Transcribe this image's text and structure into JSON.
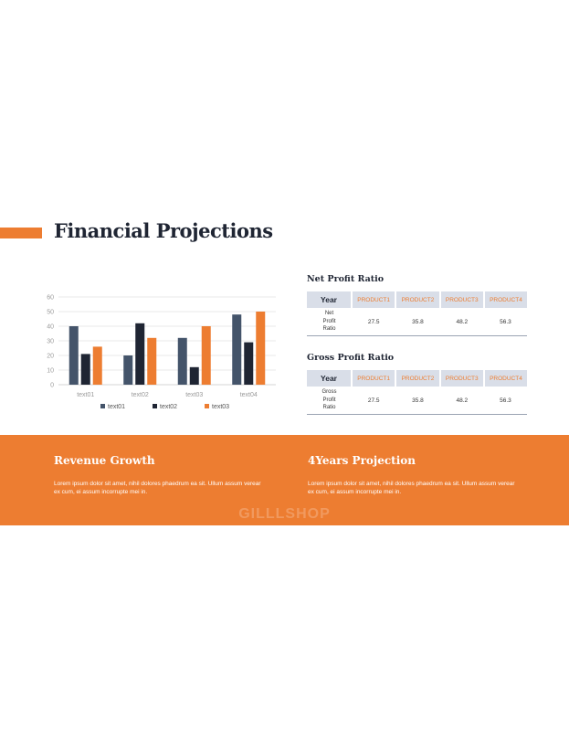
{
  "slide": {
    "title": "Financial Projections"
  },
  "chart_data": {
    "type": "bar",
    "categories": [
      "text01",
      "text02",
      "text03",
      "text04"
    ],
    "series": [
      {
        "name": "text01",
        "values": [
          40,
          20,
          32,
          48
        ],
        "color": "#44546A"
      },
      {
        "name": "text02",
        "values": [
          21,
          42,
          12,
          29
        ],
        "color": "#1F2533"
      },
      {
        "name": "text03",
        "values": [
          26,
          32,
          40,
          50
        ],
        "color": "#ED7D31"
      }
    ],
    "yticks": [
      "0",
      "10",
      "20",
      "30",
      "40",
      "50",
      "60"
    ],
    "ylim": [
      0,
      60
    ],
    "grid": true,
    "legend_position": "bottom"
  },
  "tables": {
    "net": {
      "title": "Net Profit Ratio",
      "year_label": "Year",
      "headers": [
        "PRODUCT1",
        "PRODUCT2",
        "PRODUCT3",
        "PRODUCT4"
      ],
      "row_label": [
        "Net",
        "Profit",
        "Ratio"
      ],
      "values": [
        "27.5",
        "35.8",
        "48.2",
        "56.3"
      ]
    },
    "gross": {
      "title": "Gross Profit Ratio",
      "year_label": "Year",
      "headers": [
        "PRODUCT1",
        "PRODUCT2",
        "PRODUCT3",
        "PRODUCT4"
      ],
      "row_label": [
        "Gross",
        "Profit",
        "Ratio"
      ],
      "values": [
        "27.5",
        "35.8",
        "48.2",
        "56.3"
      ]
    }
  },
  "band": {
    "left": {
      "heading": "Revenue Growth",
      "body": "Lorem ipsum dolor sit amet, nihil dolores phaedrum ea sit. Ullum assum verear ex cum, ei assum incorrupte mei in."
    },
    "right": {
      "heading": "4Years Projection",
      "body": "Lorem ipsum dolor sit amet, nihil dolores phaedrum ea sit. Ullum assum verear ex cum, ei assum incorrupte mei in."
    },
    "watermark": "GILLLSHOP"
  }
}
